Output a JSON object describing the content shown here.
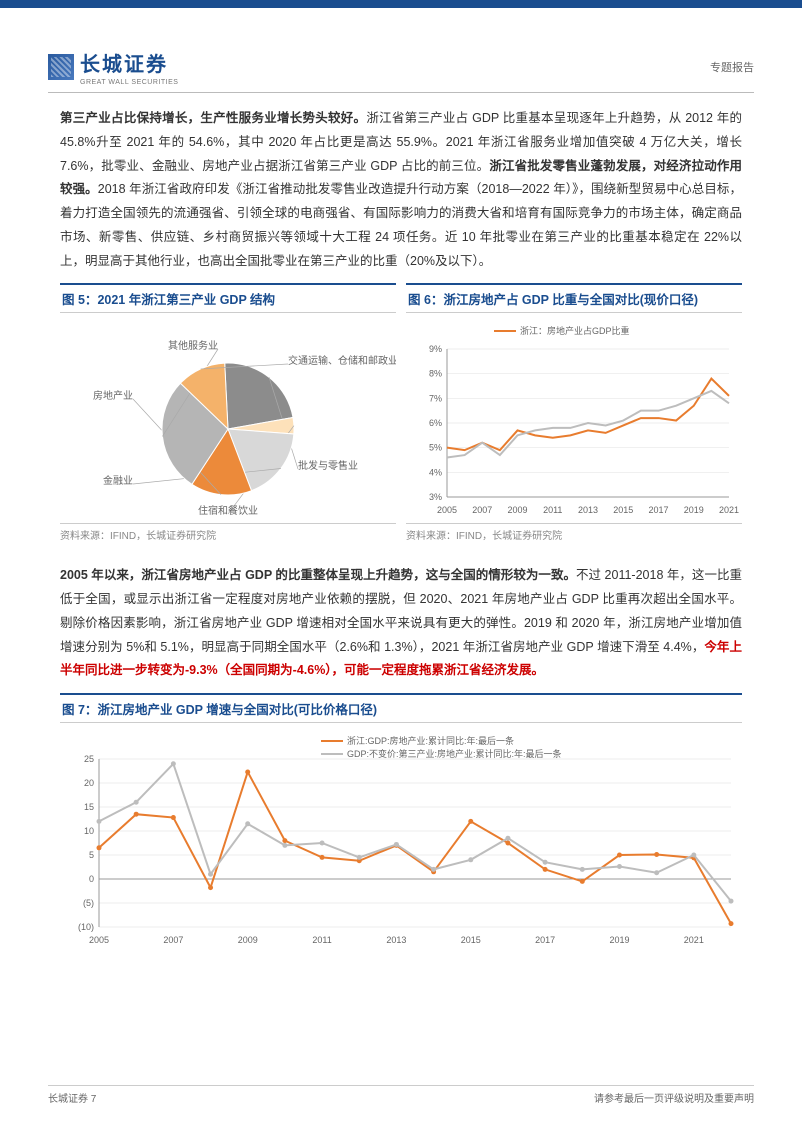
{
  "header": {
    "logo_zh": "长城证券",
    "logo_en": "GREAT WALL SECURITIES",
    "doc_type": "专题报告"
  },
  "para1": {
    "lead_bold": "第三产业占比保持增长，生产性服务业增长势头较好。",
    "tail": "浙江省第三产业占 GDP 比重基本呈现逐年上升趋势，从 2012 年的 45.8%升至 2021 年的 54.6%，其中 2020 年占比更是高达 55.9%。2021 年浙江省服务业增加值突破 4 万亿大关，增长 7.6%，批零业、金融业、房地产业占据浙江省第三产业 GDP 占比的前三位。",
    "mid_bold": "浙江省批发零售业蓬勃发展，对经济拉动作用较强。",
    "rest": "2018 年浙江省政府印发《浙江省推动批发零售业改造提升行动方案（2018—2022 年）》，围绕新型贸易中心总目标，着力打造全国领先的流通强省、引领全球的电商强省、有国际影响力的消费大省和培育有国际竞争力的市场主体，确定商品市场、新零售、供应链、乡村商贸振兴等领域十大工程 24 项任务。近 10 年批零业在第三产业的比重基本稳定在 22%以上，明显高于其他行业，也高出全国批零业在第三产业的比重（20%及以下）。"
  },
  "chart5": {
    "title_prefix": "图 5：",
    "title": "2021 年浙江第三产业 GDP 结构",
    "type": "pie",
    "slices": [
      {
        "label": "批发与零售业",
        "value": 23,
        "color": "#8c8c8c"
      },
      {
        "label": "住宿和餐饮业",
        "value": 4,
        "color": "#fde1ba"
      },
      {
        "label": "金融业",
        "value": 18,
        "color": "#d8d8d8"
      },
      {
        "label": "房地产业",
        "value": 15,
        "color": "#ec8a3a"
      },
      {
        "label": "其他服务业",
        "value": 28,
        "color": "#b5b5b5"
      },
      {
        "label": "交通运输、仓储和邮政业",
        "value": 12,
        "color": "#f4b26a"
      }
    ],
    "label_fontsize": 10,
    "label_color": "#666",
    "source": "资料来源：IFIND，长城证券研究院"
  },
  "chart6": {
    "title_prefix": "图 6：",
    "title": "浙江房地产占 GDP 比重与全国对比(现价口径)",
    "type": "line",
    "legend": [
      {
        "label": "浙江：房地产业占GDP比重",
        "color": "#e87c2e"
      }
    ],
    "x": [
      2005,
      2006,
      2007,
      2008,
      2009,
      2010,
      2011,
      2012,
      2013,
      2014,
      2015,
      2016,
      2017,
      2018,
      2019,
      2020,
      2021
    ],
    "series": [
      {
        "color": "#e87c2e",
        "width": 2,
        "y": [
          5.0,
          4.9,
          5.2,
          4.9,
          5.7,
          5.5,
          5.4,
          5.5,
          5.7,
          5.6,
          5.9,
          6.2,
          6.2,
          6.1,
          6.7,
          7.8,
          7.1
        ]
      },
      {
        "color": "#bdbdbd",
        "width": 2,
        "y": [
          4.6,
          4.7,
          5.2,
          4.7,
          5.5,
          5.7,
          5.8,
          5.8,
          6.0,
          5.9,
          6.1,
          6.5,
          6.5,
          6.7,
          7.0,
          7.3,
          6.8
        ]
      }
    ],
    "ylim": [
      3,
      9
    ],
    "ytick_step": 1,
    "y_suffix": "%",
    "xtick_step": 2,
    "grid_color": "#e8e8e8",
    "axis_color": "#999",
    "tick_fontsize": 9,
    "source": "资料来源：IFIND，长城证券研究院"
  },
  "para2": {
    "lead_bold": "2005 年以来，浙江省房地产业占 GDP 的比重整体呈现上升趋势，这与全国的情形较为一致。",
    "rest": "不过 2011-2018 年，这一比重低于全国，或显示出浙江省一定程度对房地产业依赖的摆脱，但 2020、2021 年房地产业占 GDP 比重再次超出全国水平。剔除价格因素影响，浙江省房地产业 GDP 增速相对全国水平来说具有更大的弹性。2019 和 2020 年，浙江房地产业增加值增速分别为 5%和 5.1%，明显高于同期全国水平（2.6%和 1.3%），2021 年浙江省房地产业 GDP 增速下滑至 4.4%，",
    "red_bold": "今年上半年同比进一步转变为-9.3%（全国同期为-4.6%），可能一定程度拖累浙江省经济发展。"
  },
  "chart7": {
    "title_prefix": "图 7：",
    "title": "浙江房地产业 GDP 增速与全国对比(可比价格口径)",
    "type": "line",
    "legend": [
      {
        "label": "浙江:GDP:房地产业:累计同比:年:最后一条",
        "color": "#e87c2e"
      },
      {
        "label": "GDP:不变价:第三产业:房地产业:累计同比:年:最后一条",
        "color": "#bdbdbd"
      }
    ],
    "x": [
      2005,
      2006,
      2007,
      2008,
      2009,
      2010,
      2011,
      2012,
      2013,
      2014,
      2015,
      2016,
      2017,
      2018,
      2019,
      2020,
      2021,
      2022
    ],
    "series": [
      {
        "color": "#e87c2e",
        "width": 2,
        "marker": true,
        "y": [
          6.5,
          13.5,
          12.8,
          -1.8,
          22.3,
          8.0,
          4.5,
          3.8,
          7.0,
          1.5,
          12.0,
          7.5,
          2.0,
          -0.5,
          5.0,
          5.1,
          4.4,
          -9.3
        ]
      },
      {
        "color": "#bdbdbd",
        "width": 2,
        "marker": true,
        "y": [
          12.0,
          16.0,
          24.0,
          1.0,
          11.5,
          7.0,
          7.5,
          4.5,
          7.2,
          2.0,
          4.0,
          8.5,
          3.5,
          2.0,
          2.6,
          1.3,
          5.0,
          -4.6
        ]
      }
    ],
    "ylim": [
      -10,
      25
    ],
    "yticks": [
      -10,
      -5,
      0,
      5,
      10,
      15,
      20,
      25
    ],
    "xtick_step": 2,
    "grid_color": "#e8e8e8",
    "axis_color": "#999",
    "tick_fontsize": 9,
    "neg_paren": true
  },
  "footer": {
    "left": "长城证券 7",
    "right": "请参考最后一页评级说明及重要声明"
  }
}
